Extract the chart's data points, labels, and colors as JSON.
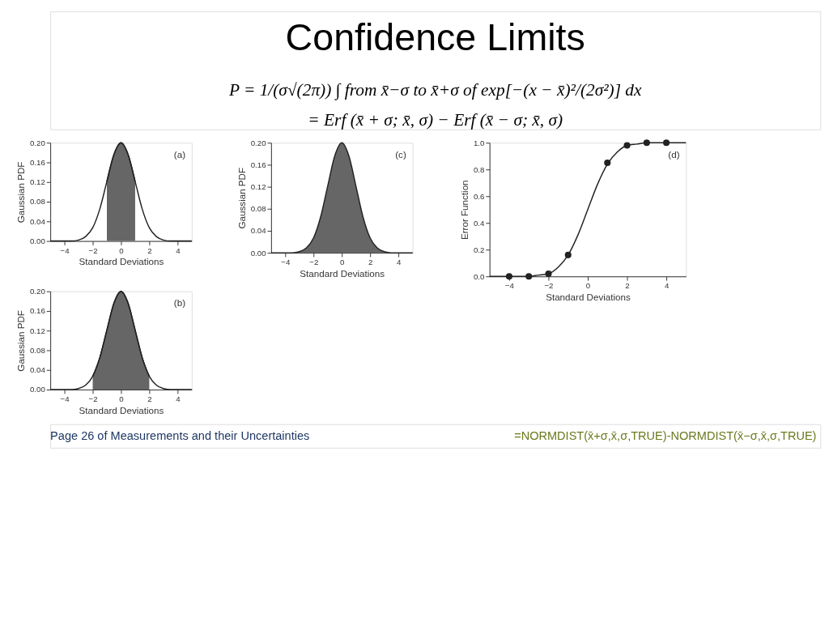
{
  "chart_data": [
    {
      "type": "other",
      "title": "Confidence Limits",
      "annotations": [
        "P = 1/(σ√(2π)) ∫ from x̄−σ to x̄+σ of exp[−(x − x̄)²/(2σ²)] dx",
        "= Erf (x̄ + σ; x̄, σ) − Erf (x̄ − σ; x̄, σ)"
      ]
    },
    {
      "type": "line",
      "xlabel": "Standard Deviations",
      "ylabel": "Gaussian PDF",
      "annotations": [
        "(a)"
      ],
      "grid": false,
      "xlim": [
        -5,
        5
      ],
      "xticks": [
        -4,
        -2,
        0,
        2,
        4
      ],
      "ylim": [
        0,
        0.2
      ],
      "yticks": [
        {
          "value": 0,
          "label": "0.00"
        },
        {
          "value": 0.04,
          "label": "0.04"
        },
        {
          "value": 0.08,
          "label": "0.08"
        },
        {
          "value": 0.12,
          "label": "0.12"
        },
        {
          "value": 0.16,
          "label": "0.16"
        },
        {
          "value": 0.2,
          "label": "0.20"
        }
      ],
      "x": [
        -5,
        -4.5,
        -4,
        -3.5,
        -3,
        -2.5,
        -2,
        -1.5,
        -1,
        -0.5,
        0,
        0.5,
        1,
        1.5,
        2,
        2.5,
        3,
        3.5,
        4,
        4.5,
        5
      ],
      "series": [
        {
          "type": "area",
          "color": "#666666",
          "x": [
            -1,
            -0.5,
            0,
            0.5,
            1
          ],
          "values": [
            0.121,
            0.176,
            0.2,
            0.176,
            0.121
          ]
        },
        {
          "type": "line",
          "color": "#222222",
          "values": [
            0,
            0,
            0,
            0,
            0.002,
            0.009,
            0.027,
            0.065,
            0.121,
            0.176,
            0.2,
            0.176,
            0.121,
            0.065,
            0.027,
            0.009,
            0.002,
            0,
            0,
            0,
            0
          ]
        }
      ]
    },
    {
      "type": "line",
      "xlabel": "Standard Deviations",
      "ylabel": "Gaussian PDF",
      "annotations": [
        "(b)"
      ],
      "grid": false,
      "xlim": [
        -5,
        5
      ],
      "xticks": [
        -4,
        -2,
        0,
        2,
        4
      ],
      "ylim": [
        0,
        0.2
      ],
      "yticks": [
        {
          "value": 0,
          "label": "0.00"
        },
        {
          "value": 0.04,
          "label": "0.04"
        },
        {
          "value": 0.08,
          "label": "0.08"
        },
        {
          "value": 0.12,
          "label": "0.12"
        },
        {
          "value": 0.16,
          "label": "0.16"
        },
        {
          "value": 0.2,
          "label": "0.20"
        }
      ],
      "x": [
        -5,
        -4.5,
        -4,
        -3.5,
        -3,
        -2.5,
        -2,
        -1.5,
        -1,
        -0.5,
        0,
        0.5,
        1,
        1.5,
        2,
        2.5,
        3,
        3.5,
        4,
        4.5,
        5
      ],
      "series": [
        {
          "type": "area",
          "color": "#666666",
          "x": [
            -2,
            -1.5,
            -1,
            -0.5,
            0,
            0.5,
            1,
            1.5,
            2
          ],
          "values": [
            0.027,
            0.065,
            0.121,
            0.176,
            0.2,
            0.176,
            0.121,
            0.065,
            0.027
          ]
        },
        {
          "type": "line",
          "color": "#222222",
          "values": [
            0,
            0,
            0,
            0,
            0.002,
            0.009,
            0.027,
            0.065,
            0.121,
            0.176,
            0.2,
            0.176,
            0.121,
            0.065,
            0.027,
            0.009,
            0.002,
            0,
            0,
            0,
            0
          ]
        }
      ]
    },
    {
      "type": "line",
      "xlabel": "Standard Deviations",
      "ylabel": "Gaussian PDF",
      "annotations": [
        "(c)"
      ],
      "grid": false,
      "xlim": [
        -5,
        5
      ],
      "xticks": [
        -4,
        -2,
        0,
        2,
        4
      ],
      "ylim": [
        0,
        0.2
      ],
      "yticks": [
        {
          "value": 0,
          "label": "0.00"
        },
        {
          "value": 0.04,
          "label": "0.04"
        },
        {
          "value": 0.08,
          "label": "0.08"
        },
        {
          "value": 0.12,
          "label": "0.12"
        },
        {
          "value": 0.16,
          "label": "0.16"
        },
        {
          "value": 0.2,
          "label": "0.20"
        }
      ],
      "x": [
        -5,
        -4.5,
        -4,
        -3.5,
        -3,
        -2.5,
        -2,
        -1.5,
        -1,
        -0.5,
        0,
        0.5,
        1,
        1.5,
        2,
        2.5,
        3,
        3.5,
        4,
        4.5,
        5
      ],
      "series": [
        {
          "type": "area",
          "color": "#666666",
          "values": [
            0,
            0,
            0,
            0,
            0.002,
            0.009,
            0.027,
            0.065,
            0.121,
            0.176,
            0.2,
            0.176,
            0.121,
            0.065,
            0.027,
            0.009,
            0.002,
            0,
            0,
            0,
            0
          ]
        }
      ]
    },
    {
      "type": "line",
      "xlabel": "Standard Deviations",
      "ylabel": "Error Function",
      "annotations": [
        "(d)"
      ],
      "grid": false,
      "xlim": [
        -5,
        5
      ],
      "xticks": [
        -4,
        -2,
        0,
        2,
        4
      ],
      "ylim": [
        0,
        1
      ],
      "yticks": [
        {
          "value": 0,
          "label": "0.0"
        },
        {
          "value": 0.2,
          "label": "0.2"
        },
        {
          "value": 0.4,
          "label": "0.4"
        },
        {
          "value": 0.6,
          "label": "0.6"
        },
        {
          "value": 0.8,
          "label": "0.8"
        },
        {
          "value": 1,
          "label": "1.0"
        }
      ],
      "x": [
        -5,
        -4.5,
        -4,
        -3.5,
        -3,
        -2.5,
        -2,
        -1.5,
        -1,
        -0.5,
        0,
        0.5,
        1,
        1.5,
        2,
        2.5,
        3,
        3.5,
        4,
        4.5,
        5
      ],
      "series": [
        {
          "type": "line",
          "color": "#222222",
          "values": [
            0,
            0,
            0,
            0,
            0,
            0.01,
            0.02,
            0.07,
            0.16,
            0.31,
            0.5,
            0.69,
            0.84,
            0.93,
            0.98,
            0.99,
            1,
            1,
            1,
            1,
            1
          ]
        },
        {
          "type": "scatter",
          "color": "#222222",
          "x": [
            -4,
            -3,
            -2,
            -1,
            1,
            2,
            3,
            4
          ],
          "values": [
            0,
            0,
            0.02,
            0.16,
            0.85,
            0.98,
            1,
            1
          ]
        }
      ]
    },
    {
      "type": "other",
      "annotations": [
        "Page 26 of Measurements and their Uncertainties",
        "=NORMDIST(x̄+σ,x̄,σ,TRUE)-NORMDIST(x̄−σ,x̄,σ,TRUE)"
      ]
    }
  ]
}
